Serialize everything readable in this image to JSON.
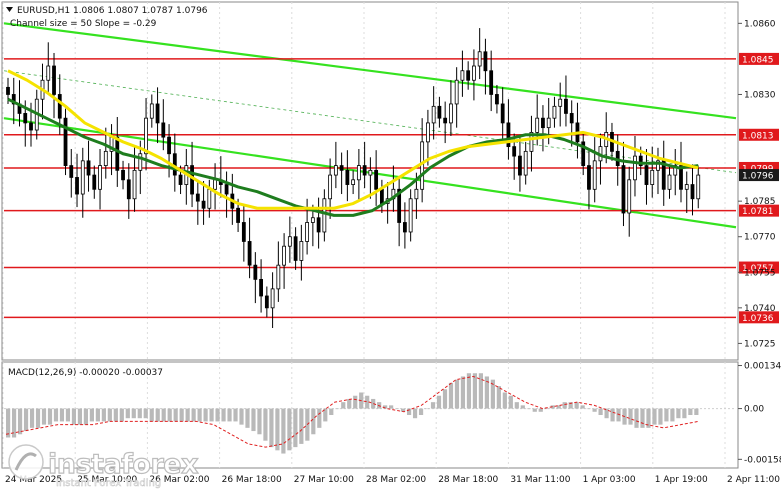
{
  "chart_header": {
    "symbol_line": "EURUSD,H1  1.0806 1.0807 1.0787 1.0796",
    "indicator_line": "Channel size = 50 Slope = -0.29"
  },
  "chart_data": [
    {
      "type": "candlestick",
      "title": "EURUSD,H1",
      "ohlc": {
        "open": 1.0806,
        "high": 1.0807,
        "low": 1.0787,
        "close": 1.0796
      },
      "channel": {
        "size": 50,
        "slope": -0.29
      },
      "ylim": [
        1.0718,
        1.0869
      ],
      "y_ticks": [
        "1.0860",
        "1.0830",
        "1.0785",
        "1.0770",
        "1.0755",
        "1.0740",
        "1.0725"
      ],
      "x_ticks": [
        "24 Mar 2025",
        "25 Mar 10:00",
        "26 Mar 02:00",
        "26 Mar 18:00",
        "27 Mar 10:00",
        "28 Mar 02:00",
        "28 Mar 18:00",
        "31 Mar 11:00",
        "1 Apr 03:00",
        "1 Apr 19:00",
        "2 Apr 11:00"
      ],
      "levels": [
        {
          "label": "1.0845",
          "value": 1.0845,
          "color": "#e0191c"
        },
        {
          "label": "1.0813",
          "value": 1.0813,
          "color": "#e0191c"
        },
        {
          "label": "1.0799",
          "value": 1.0799,
          "color": "#e0191c"
        },
        {
          "label": "1.0796",
          "value": 1.0796,
          "color": "#1a1a1a"
        },
        {
          "label": "1.0781",
          "value": 1.0781,
          "color": "#e0191c"
        },
        {
          "label": "1.0757",
          "value": 1.0757,
          "color": "#e0191c"
        },
        {
          "label": "1.0736",
          "value": 1.0736,
          "color": "#e0191c"
        }
      ],
      "candle_closes": [
        1.083,
        1.0826,
        1.0822,
        1.0818,
        1.0815,
        1.0828,
        1.0836,
        1.0842,
        1.083,
        1.082,
        1.08,
        1.0795,
        1.0788,
        1.0802,
        1.0796,
        1.079,
        1.08,
        1.0806,
        1.0812,
        1.0798,
        1.0794,
        1.0786,
        1.0798,
        1.0805,
        1.082,
        1.0826,
        1.0818,
        1.0812,
        1.0805,
        1.0796,
        1.0792,
        1.08,
        1.0788,
        1.0785,
        1.0782,
        1.079,
        1.0794,
        1.0792,
        1.0788,
        1.0782,
        1.0776,
        1.0768,
        1.0758,
        1.0752,
        1.0745,
        1.074,
        1.0748,
        1.0758,
        1.0766,
        1.077,
        1.076,
        1.0768,
        1.0776,
        1.0778,
        1.0772,
        1.0786,
        1.0796,
        1.08,
        1.0798,
        1.0792,
        1.0794,
        1.08,
        1.0796,
        1.0798,
        1.079,
        1.0784,
        1.0786,
        1.079,
        1.0776,
        1.0772,
        1.0786,
        1.079,
        1.081,
        1.0818,
        1.0825,
        1.082,
        1.0818,
        1.0826,
        1.0836,
        1.084,
        1.0836,
        1.0842,
        1.0848,
        1.084,
        1.083,
        1.0826,
        1.0818,
        1.0808,
        1.0804,
        1.0796,
        1.0806,
        1.0814,
        1.082,
        1.0816,
        1.082,
        1.0825,
        1.0828,
        1.0822,
        1.0818,
        1.081,
        1.08,
        1.079,
        1.0802,
        1.0808,
        1.0814,
        1.0806,
        1.08,
        1.078,
        1.0794,
        1.0804,
        1.08,
        1.0792,
        1.0798,
        1.0802,
        1.079,
        1.0796,
        1.08,
        1.079,
        1.0792,
        1.0786,
        1.0796
      ],
      "series": [
        {
          "name": "",
          "color": "#1e7d1e",
          "values": [
            1.0828,
            1.0824,
            1.082,
            1.0816,
            1.0812,
            1.0809,
            1.0805,
            1.0803,
            1.08,
            1.0798,
            1.0796,
            1.0794,
            1.0791,
            1.0789,
            1.0786,
            1.0783,
            1.0781,
            1.0779,
            1.0779,
            1.0781,
            1.0786,
            1.0792,
            1.0799,
            1.0804,
            1.0808,
            1.081,
            1.0811,
            1.0813,
            1.0813,
            1.0811,
            1.0808,
            1.0804,
            1.0802,
            1.0801,
            1.0801,
            1.0799,
            1.08
          ]
        },
        {
          "name": "",
          "color": "#f5e300",
          "values": [
            1.084,
            1.0836,
            1.0831,
            1.0825,
            1.0818,
            1.0814,
            1.081,
            1.0807,
            1.0803,
            1.0798,
            1.0793,
            1.0788,
            1.0784,
            1.0782,
            1.0782,
            1.0782,
            1.0782,
            1.0782,
            1.0784,
            1.0788,
            1.0793,
            1.0798,
            1.0803,
            1.0806,
            1.0808,
            1.0809,
            1.081,
            1.0811,
            1.0812,
            1.0813,
            1.0814,
            1.0812,
            1.0809,
            1.0806,
            1.0803,
            1.0801,
            1.0799
          ]
        }
      ],
      "channel_lines": [
        {
          "start": 1.086,
          "end": 1.082
        },
        {
          "start": 1.082,
          "end": 1.0774
        }
      ]
    },
    {
      "type": "bar",
      "title": "MACD(12,26,9) -0.00020 -0.00037",
      "ylim": [
        -0.00185,
        0.00145
      ],
      "y_ticks": [
        "0.00134",
        "0.00",
        "-0.00158"
      ],
      "histogram": [
        -0.0009,
        -0.0009,
        -0.0008,
        -0.0007,
        -0.0006,
        -0.0006,
        -0.0005,
        -0.0005,
        -0.0004,
        -0.0004,
        -0.0004,
        -0.0005,
        -0.0005,
        -0.0005,
        -0.0004,
        -0.0004,
        -0.0004,
        -0.0004,
        -0.0004,
        -0.0004,
        -0.0003,
        -0.0003,
        -0.0003,
        -0.0003,
        -0.0004,
        -0.0004,
        -0.0004,
        -0.0004,
        -0.0004,
        -0.0004,
        -0.0004,
        -0.0004,
        -0.0004,
        -0.0004,
        -0.0004,
        -0.0004,
        -0.0004,
        -0.0004,
        -0.0004,
        -0.0005,
        -0.0006,
        -0.0007,
        -0.0008,
        -0.001,
        -0.0012,
        -0.0013,
        -0.0014,
        -0.0013,
        -0.0012,
        -0.0011,
        -0.001,
        -0.0008,
        -0.0006,
        -0.0004,
        -0.0002,
        0.0,
        0.0002,
        0.0003,
        0.0004,
        0.0005,
        0.0004,
        0.0003,
        0.0002,
        0.0001,
        0.0001,
        0.0,
        -0.0001,
        -0.0002,
        -0.0003,
        -0.0002,
        0.0,
        0.0002,
        0.0004,
        0.0006,
        0.0008,
        0.0009,
        0.001,
        0.0011,
        0.0011,
        0.0011,
        0.001,
        0.0009,
        0.0007,
        0.0005,
        0.0004,
        0.0002,
        0.0001,
        0.0,
        -0.0001,
        -0.0001,
        0.0,
        0.0001,
        0.0001,
        0.0002,
        0.0002,
        0.0002,
        0.0001,
        0.0,
        -0.0001,
        -0.0002,
        -0.0003,
        -0.0004,
        -0.0004,
        -0.0005,
        -0.0005,
        -0.0006,
        -0.0006,
        -0.0006,
        -0.0005,
        -0.0005,
        -0.0004,
        -0.0004,
        -0.0003,
        -0.0003,
        -0.0002,
        -0.0002
      ],
      "signal": [
        -0.0008,
        -0.0007,
        -0.0006,
        -0.0005,
        -0.0005,
        -0.0005,
        -0.0004,
        -0.0004,
        -0.0004,
        -0.0004,
        -0.0004,
        -0.0004,
        -0.0005,
        -0.0008,
        -0.0011,
        -0.0012,
        -0.0011,
        -0.0007,
        -0.0002,
        0.0002,
        0.0003,
        0.0002,
        0.0,
        -0.0001,
        0.0001,
        0.0005,
        0.0009,
        0.001,
        0.0008,
        0.0005,
        0.0002,
        0.0,
        0.0001,
        0.0002,
        0.0001,
        -0.0001,
        -0.0003,
        -0.0005,
        -0.0006,
        -0.0005,
        -0.0004
      ]
    }
  ],
  "logo": {
    "brand_text": "instaforex",
    "tagline": "Instant Forex Trading"
  }
}
